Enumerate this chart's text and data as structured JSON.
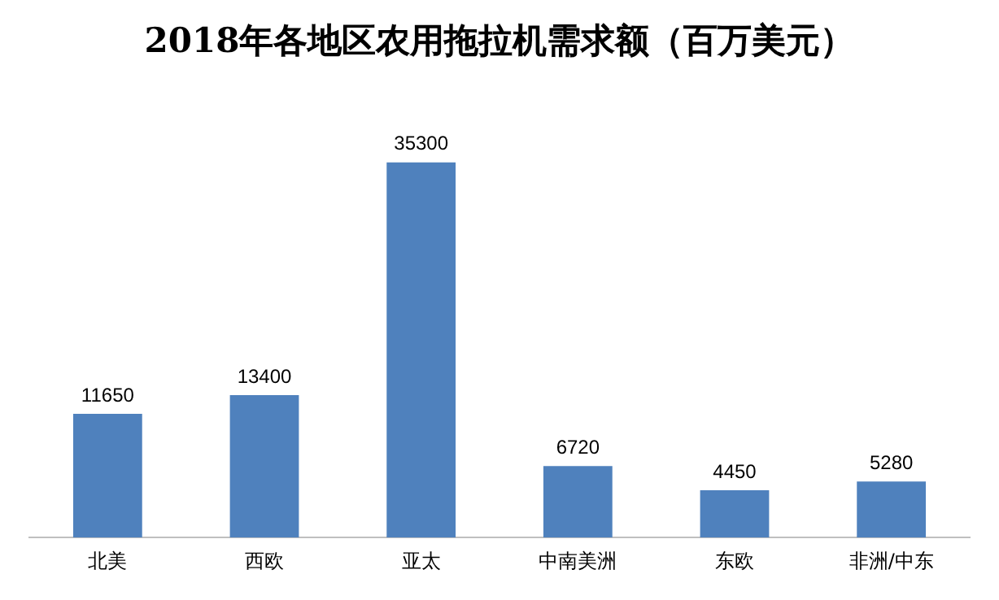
{
  "chart_data": {
    "type": "bar",
    "title": "2018年各地区农用拖拉机需求额（百万美元）",
    "categories": [
      "北美",
      "西欧",
      "亚太",
      "中南美洲",
      "东欧",
      "非洲/中东"
    ],
    "values": [
      11650,
      13400,
      35300,
      6720,
      4450,
      5280
    ],
    "color": "#4f81bd",
    "data_labels": true,
    "grid": false,
    "legend": false,
    "tick_labels": "x"
  }
}
